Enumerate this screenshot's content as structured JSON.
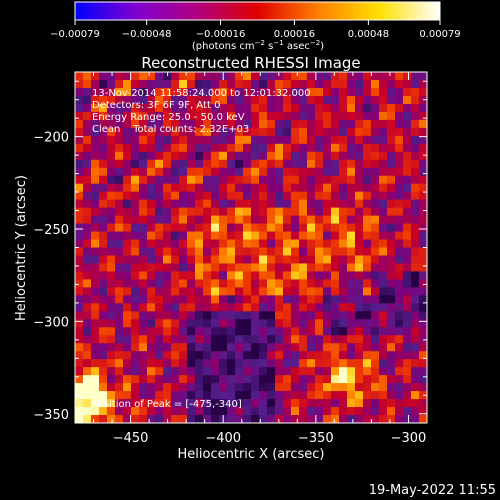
{
  "chart_data": {
    "type": "heatmap",
    "title": "Reconstructed RHESSI Image",
    "xlabel": "Heliocentric X (arcsec)",
    "ylabel": "Heliocentric Y (arcsec)",
    "xlim": [
      -480,
      -290
    ],
    "ylim": [
      -355,
      -165
    ],
    "x_ticks": [
      -450,
      -400,
      -350,
      -300
    ],
    "y_ticks": [
      -350,
      -300,
      -250,
      -200
    ],
    "x_tick_labels": [
      "−450",
      "−400",
      "−350",
      "−300"
    ],
    "y_tick_labels": [
      "−350",
      "−300",
      "−250",
      "−200"
    ],
    "colorbar": {
      "range": [
        -0.00079,
        0.00079
      ],
      "ticks": [
        -0.00079,
        -0.00048,
        -0.00016,
        0.00016,
        0.00048,
        0.00079
      ],
      "tick_labels": [
        "−0.00079",
        "−0.00048",
        "−0.00016",
        "0.00016",
        "0.00048",
        "0.00079"
      ],
      "unit_parts": [
        "(photons cm",
        "−2",
        " s",
        "−1",
        " asec",
        "−2",
        ")"
      ],
      "colors": [
        "#0000ff",
        "#8000d0",
        "#b00080",
        "#e00000",
        "#ff8000",
        "#ffe000",
        "#ffffff"
      ]
    },
    "annotations": {
      "time": "13-Nov-2014 11:58:24.000 to 12:01:32.000",
      "detectors": "Detectors: 3F 6F 9F, Att 0",
      "energy": "Energy Range: 25.0 - 50.0 keV",
      "clean": "Clean    Total counts: 2.32E+03",
      "peak": "Position of Peak = [-475,-340]"
    },
    "peak": [
      -475,
      -340
    ]
  },
  "footer": {
    "date": "19-May-2022 11:55"
  },
  "colors": {
    "background": "#000000",
    "foreground": "#ffffff"
  }
}
